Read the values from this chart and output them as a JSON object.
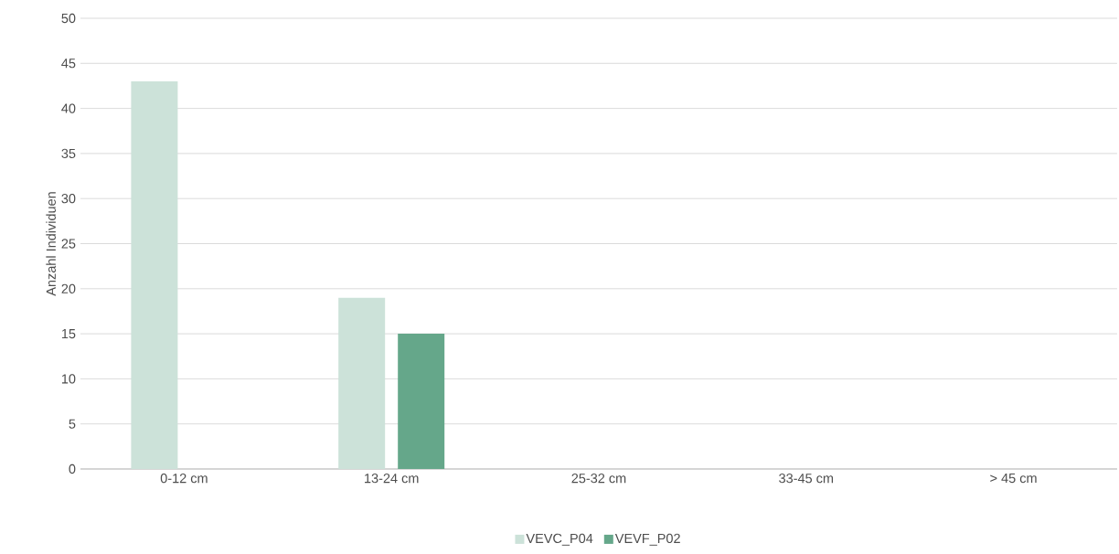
{
  "chart_data": {
    "type": "bar",
    "ylabel": "Anzahl Individuen",
    "categories": [
      "0-12 cm",
      "13-24 cm",
      "25-32 cm",
      "33-45 cm",
      "> 45 cm"
    ],
    "series": [
      {
        "name": "VEVC_P04",
        "color": "#cce2d9",
        "values": [
          43,
          19,
          0,
          0,
          0
        ]
      },
      {
        "name": "VEVF_P02",
        "color": "#65a78a",
        "values": [
          0,
          15,
          0,
          0,
          0
        ]
      }
    ],
    "ylim": [
      0,
      50
    ],
    "yticks": [
      0,
      5,
      10,
      15,
      20,
      25,
      30,
      35,
      40,
      45,
      50
    ],
    "grid": "y",
    "legend": "bottom"
  }
}
